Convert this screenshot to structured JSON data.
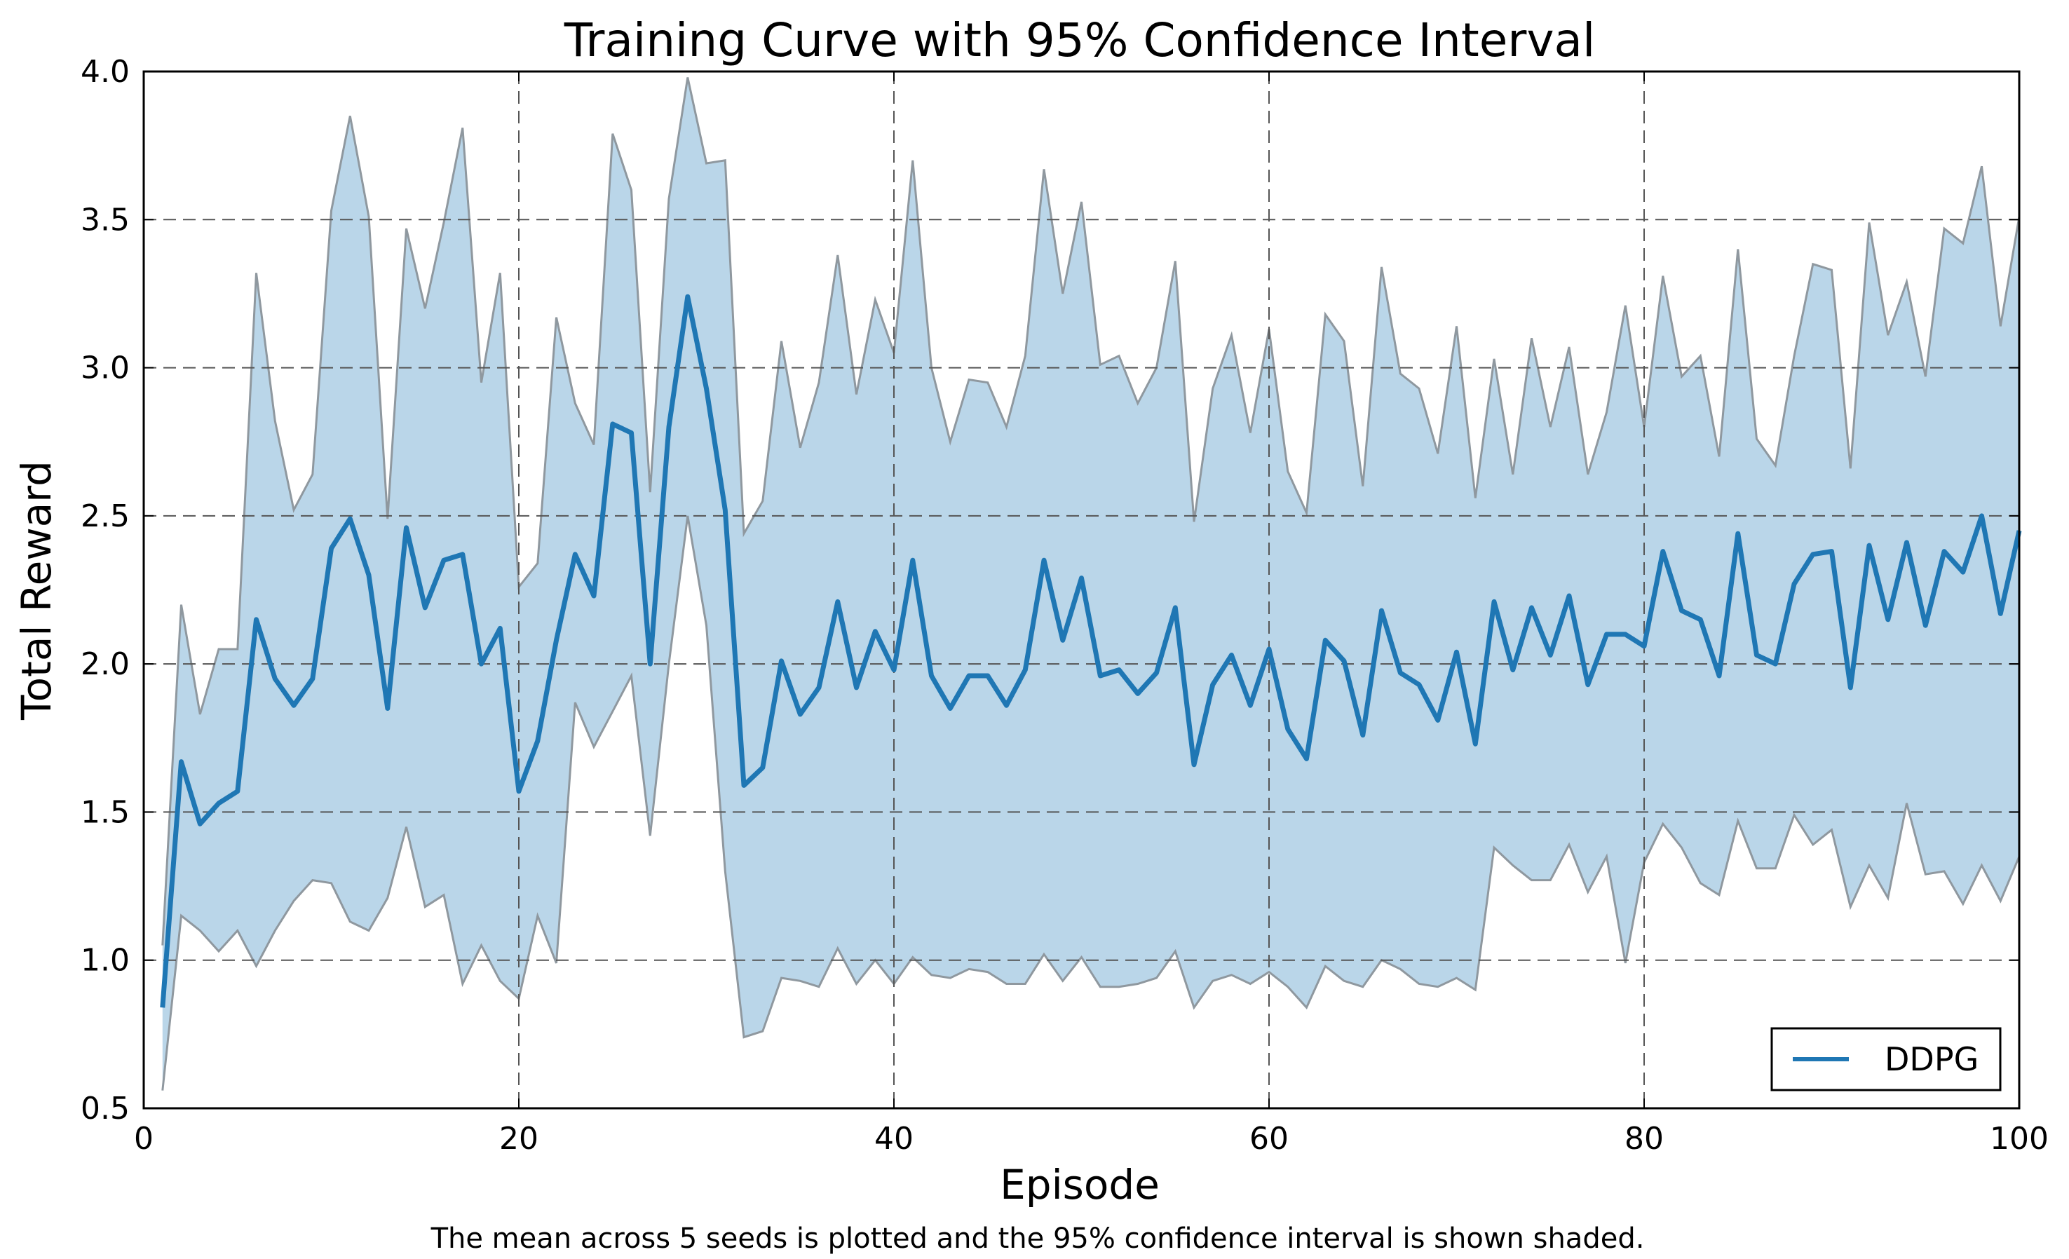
{
  "chart_data": {
    "type": "line",
    "title": "Training Curve with 95% Confidence Interval",
    "xlabel": "Episode",
    "ylabel": "Total Reward",
    "caption": "The mean across 5 seeds is plotted and the 95% confidence interval is shown shaded.",
    "xlim": [
      0,
      100
    ],
    "ylim": [
      0.5,
      4.0
    ],
    "xticks": [
      0,
      20,
      40,
      60,
      80,
      100
    ],
    "xtick_labels": [
      "0",
      "20",
      "40",
      "60",
      "80",
      "100"
    ],
    "yticks": [
      0.5,
      1.0,
      1.5,
      2.0,
      2.5,
      3.0,
      3.5,
      4.0
    ],
    "ytick_labels": [
      "0.5",
      "1.0",
      "1.5",
      "2.0",
      "2.5",
      "3.0",
      "3.5",
      "4.0"
    ],
    "grid": true,
    "legend_position": "bottom-right",
    "colors": {
      "line": "#1f77b4",
      "band": "#bad6e9",
      "band_edge": "#8f989f",
      "grid": "#555555"
    },
    "x": [
      1,
      2,
      3,
      4,
      5,
      6,
      7,
      8,
      9,
      10,
      11,
      12,
      13,
      14,
      15,
      16,
      17,
      18,
      19,
      20,
      21,
      22,
      23,
      24,
      25,
      26,
      27,
      28,
      29,
      30,
      31,
      32,
      33,
      34,
      35,
      36,
      37,
      38,
      39,
      40,
      41,
      42,
      43,
      44,
      45,
      46,
      47,
      48,
      49,
      50,
      51,
      52,
      53,
      54,
      55,
      56,
      57,
      58,
      59,
      60,
      61,
      62,
      63,
      64,
      65,
      66,
      67,
      68,
      69,
      70,
      71,
      72,
      73,
      74,
      75,
      76,
      77,
      78,
      79,
      80,
      81,
      82,
      83,
      84,
      85,
      86,
      87,
      88,
      89,
      90,
      91,
      92,
      93,
      94,
      95,
      96,
      97,
      98,
      99,
      100
    ],
    "series": [
      {
        "name": "DDPG",
        "mean": [
          0.84,
          1.67,
          1.46,
          1.53,
          1.57,
          2.15,
          1.95,
          1.86,
          1.95,
          2.39,
          2.49,
          2.3,
          1.85,
          2.46,
          2.19,
          2.35,
          2.37,
          2.0,
          2.12,
          1.57,
          1.74,
          2.08,
          2.37,
          2.23,
          2.81,
          2.78,
          2.0,
          2.8,
          3.24,
          2.93,
          2.52,
          1.59,
          1.65,
          2.01,
          1.83,
          1.92,
          2.21,
          1.92,
          2.11,
          1.98,
          2.35,
          1.96,
          1.85,
          1.96,
          1.96,
          1.86,
          1.98,
          2.35,
          2.08,
          2.29,
          1.96,
          1.98,
          1.9,
          1.97,
          2.19,
          1.66,
          1.93,
          2.03,
          1.86,
          2.05,
          1.78,
          1.68,
          2.08,
          2.01,
          1.76,
          2.18,
          1.97,
          1.93,
          1.81,
          2.04,
          1.73,
          2.21,
          1.98,
          2.19,
          2.03,
          2.23,
          1.93,
          2.1,
          2.1,
          2.06,
          2.38,
          2.18,
          2.15,
          1.96,
          2.44,
          2.03,
          2.0,
          2.27,
          2.37,
          2.38,
          1.92,
          2.4,
          2.15,
          2.41,
          2.13,
          2.38,
          2.31,
          2.5,
          2.17,
          2.45
        ],
        "lower": [
          0.56,
          1.15,
          1.1,
          1.03,
          1.1,
          0.98,
          1.1,
          1.2,
          1.27,
          1.26,
          1.13,
          1.1,
          1.21,
          1.45,
          1.18,
          1.22,
          0.92,
          1.05,
          0.93,
          0.87,
          1.15,
          0.99,
          1.87,
          1.72,
          1.84,
          1.96,
          1.42,
          2.0,
          2.5,
          2.13,
          1.3,
          0.74,
          0.76,
          0.94,
          0.93,
          0.91,
          1.04,
          0.92,
          1.0,
          0.92,
          1.01,
          0.95,
          0.94,
          0.97,
          0.96,
          0.92,
          0.92,
          1.02,
          0.93,
          1.01,
          0.91,
          0.91,
          0.92,
          0.94,
          1.03,
          0.84,
          0.93,
          0.95,
          0.92,
          0.96,
          0.91,
          0.84,
          0.98,
          0.93,
          0.91,
          1.0,
          0.97,
          0.92,
          0.91,
          0.94,
          0.9,
          1.38,
          1.32,
          1.27,
          1.27,
          1.39,
          1.23,
          1.35,
          0.99,
          1.33,
          1.46,
          1.38,
          1.26,
          1.22,
          1.47,
          1.31,
          1.31,
          1.49,
          1.39,
          1.44,
          1.18,
          1.32,
          1.21,
          1.53,
          1.29,
          1.3,
          1.19,
          1.32,
          1.2,
          1.35
        ],
        "upper": [
          1.05,
          2.2,
          1.83,
          2.05,
          2.05,
          3.32,
          2.82,
          2.52,
          2.64,
          3.53,
          3.85,
          3.51,
          2.49,
          3.47,
          3.2,
          3.49,
          3.81,
          2.95,
          3.32,
          2.26,
          2.34,
          3.17,
          2.88,
          2.74,
          3.79,
          3.6,
          2.58,
          3.57,
          3.98,
          3.69,
          3.7,
          2.44,
          2.55,
          3.09,
          2.73,
          2.95,
          3.38,
          2.91,
          3.23,
          3.05,
          3.7,
          3.0,
          2.75,
          2.96,
          2.95,
          2.8,
          3.04,
          3.67,
          3.25,
          3.56,
          3.01,
          3.04,
          2.88,
          3.0,
          3.36,
          2.48,
          2.93,
          3.11,
          2.78,
          3.13,
          2.65,
          2.51,
          3.18,
          3.09,
          2.6,
          3.34,
          2.98,
          2.93,
          2.71,
          3.14,
          2.56,
          3.03,
          2.64,
          3.1,
          2.8,
          3.07,
          2.64,
          2.85,
          3.21,
          2.8,
          3.31,
          2.97,
          3.04,
          2.7,
          3.4,
          2.76,
          2.67,
          3.04,
          3.35,
          3.33,
          2.66,
          3.49,
          3.11,
          3.29,
          2.97,
          3.47,
          3.42,
          3.68,
          3.14,
          3.51
        ]
      }
    ]
  }
}
